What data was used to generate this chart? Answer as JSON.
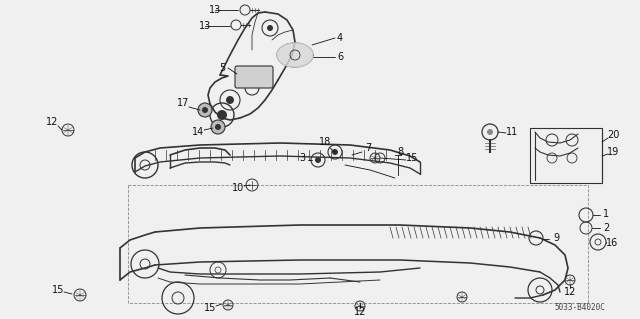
{
  "bg_color": "#f0f0f0",
  "part_code": "5033-B4020C",
  "text_color": "#111111",
  "line_color": "#333333",
  "font_size": 7.0,
  "fig_w": 6.4,
  "fig_h": 3.19,
  "dpi": 100
}
